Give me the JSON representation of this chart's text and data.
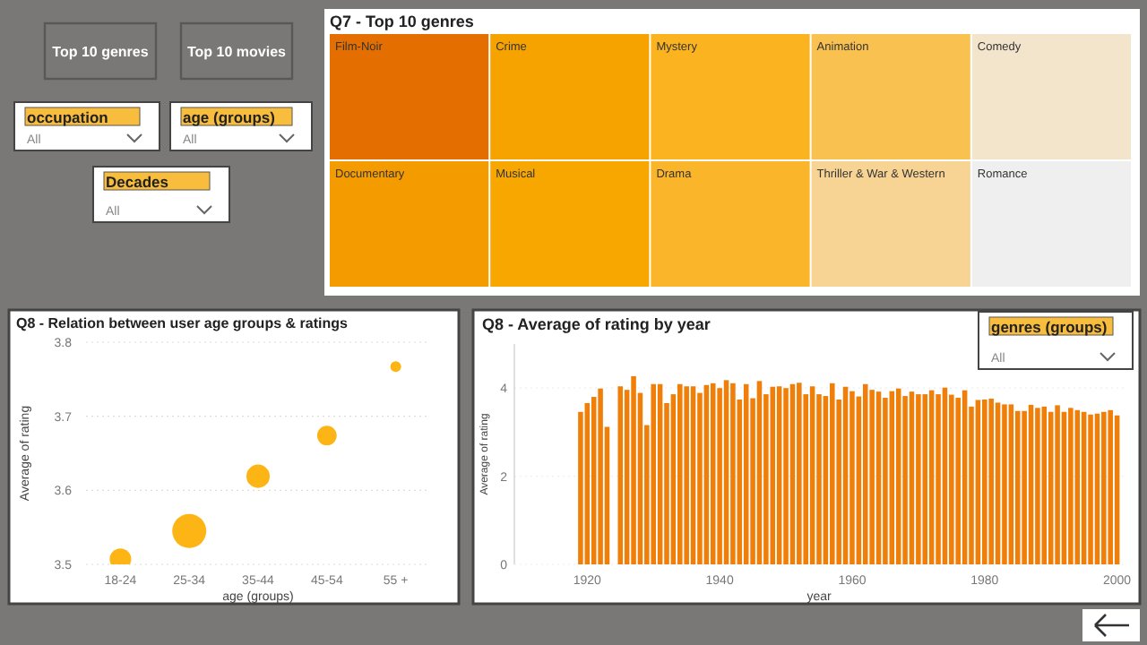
{
  "chart_data": [
    {
      "type": "other",
      "annotations": [
        "Top 10 genres",
        "Top 10 movies",
        "occupation",
        "All",
        "age (groups)",
        "All",
        "Decades",
        "All",
        "genres (groups)",
        "All"
      ]
    },
    {
      "type": "other",
      "title": "Q7 - Top 10 genres",
      "categories": [
        "Film-Noir",
        "Documentary",
        "Crime",
        "Musical",
        "Mystery",
        "Drama",
        "Animation",
        "Thriller & War & Western",
        "Comedy",
        "Romance"
      ],
      "colors": [
        "#e46f00",
        "#f49b00",
        "#f6a300",
        "#f8a700",
        "#fbb320",
        "#fbb52a",
        "#f8c150",
        "#f7d493",
        "#f2e5cc",
        "#efefef"
      ]
    },
    {
      "type": "bubble",
      "title": "Q8 - Relation between user age groups & ratings",
      "xlabel": "age (groups)",
      "ylabel": "Average of rating",
      "categories": [
        "18-24",
        "25-34",
        "35-44",
        "45-54",
        "55 +"
      ],
      "values": [
        3.507,
        3.545,
        3.619,
        3.674,
        3.767
      ],
      "sizes": [
        0.4,
        1,
        0.47,
        0.33,
        0.1
      ],
      "color": "#fdb515",
      "ylim": [
        3.5,
        3.8
      ],
      "yticks": [
        3.5,
        3.6,
        3.7,
        3.8
      ],
      "grid": "y"
    },
    {
      "type": "bar",
      "title": "Q8 - Average of rating by year",
      "xlabel": "year",
      "ylabel": "Average of rating",
      "x": [
        1919,
        1920,
        1921,
        1922,
        1923,
        1925,
        1926,
        1927,
        1928,
        1929,
        1930,
        1931,
        1932,
        1933,
        1934,
        1935,
        1936,
        1937,
        1938,
        1939,
        1940,
        1941,
        1942,
        1943,
        1944,
        1945,
        1946,
        1947,
        1948,
        1949,
        1950,
        1951,
        1952,
        1953,
        1954,
        1955,
        1956,
        1957,
        1958,
        1959,
        1960,
        1961,
        1962,
        1963,
        1964,
        1965,
        1966,
        1967,
        1968,
        1969,
        1970,
        1971,
        1972,
        1973,
        1974,
        1975,
        1976,
        1977,
        1978,
        1979,
        1980,
        1981,
        1982,
        1983,
        1984,
        1985,
        1986,
        1987,
        1988,
        1989,
        1990,
        1991,
        1992,
        1993,
        1994,
        1995,
        1996,
        1997,
        1998,
        1999,
        2000
      ],
      "values": [
        3.46,
        3.66,
        3.8,
        3.99,
        3.12,
        4.04,
        3.96,
        4.27,
        3.89,
        3.16,
        4.09,
        4.09,
        3.66,
        3.86,
        4.09,
        4.04,
        4.04,
        3.89,
        4.07,
        4.11,
        4.0,
        4.18,
        4.11,
        3.74,
        4.09,
        3.77,
        4.16,
        3.86,
        4.03,
        4.04,
        4.0,
        4.09,
        4.12,
        3.86,
        4.04,
        3.86,
        3.82,
        4.11,
        3.74,
        4.03,
        3.93,
        3.81,
        4.09,
        3.96,
        3.92,
        3.78,
        3.93,
        3.99,
        3.82,
        3.92,
        3.86,
        3.86,
        3.95,
        3.86,
        4.01,
        3.85,
        3.78,
        3.95,
        3.58,
        3.73,
        3.74,
        3.76,
        3.67,
        3.63,
        3.63,
        3.48,
        3.48,
        3.62,
        3.55,
        3.58,
        3.46,
        3.61,
        3.46,
        3.55,
        3.5,
        3.46,
        3.4,
        3.42,
        3.46,
        3.5,
        3.38
      ],
      "color": "#f07f09",
      "xlim": [
        1909,
        2001
      ],
      "xticks": [
        1920,
        1940,
        1960,
        1980,
        2000
      ],
      "ylim": [
        0,
        5
      ],
      "yticks": [
        0,
        2,
        4
      ],
      "grid": "y"
    }
  ]
}
